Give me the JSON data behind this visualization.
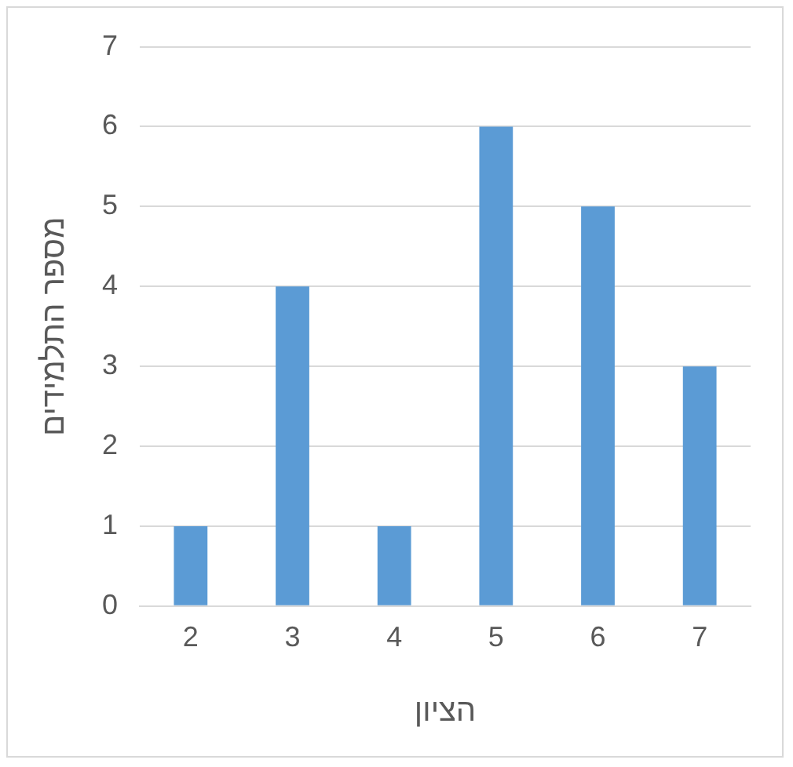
{
  "chart_data": {
    "type": "bar",
    "xlabel": "הציון",
    "ylabel": "מספר התלמידים",
    "categories": [
      "2",
      "3",
      "4",
      "5",
      "6",
      "7"
    ],
    "values": [
      1,
      4,
      1,
      6,
      5,
      3
    ],
    "color": "#5b9bd5",
    "ylim": [
      0,
      7
    ],
    "yticks": [
      0,
      1,
      2,
      3,
      4,
      5,
      6,
      7
    ],
    "grid": "y",
    "legend": false
  }
}
